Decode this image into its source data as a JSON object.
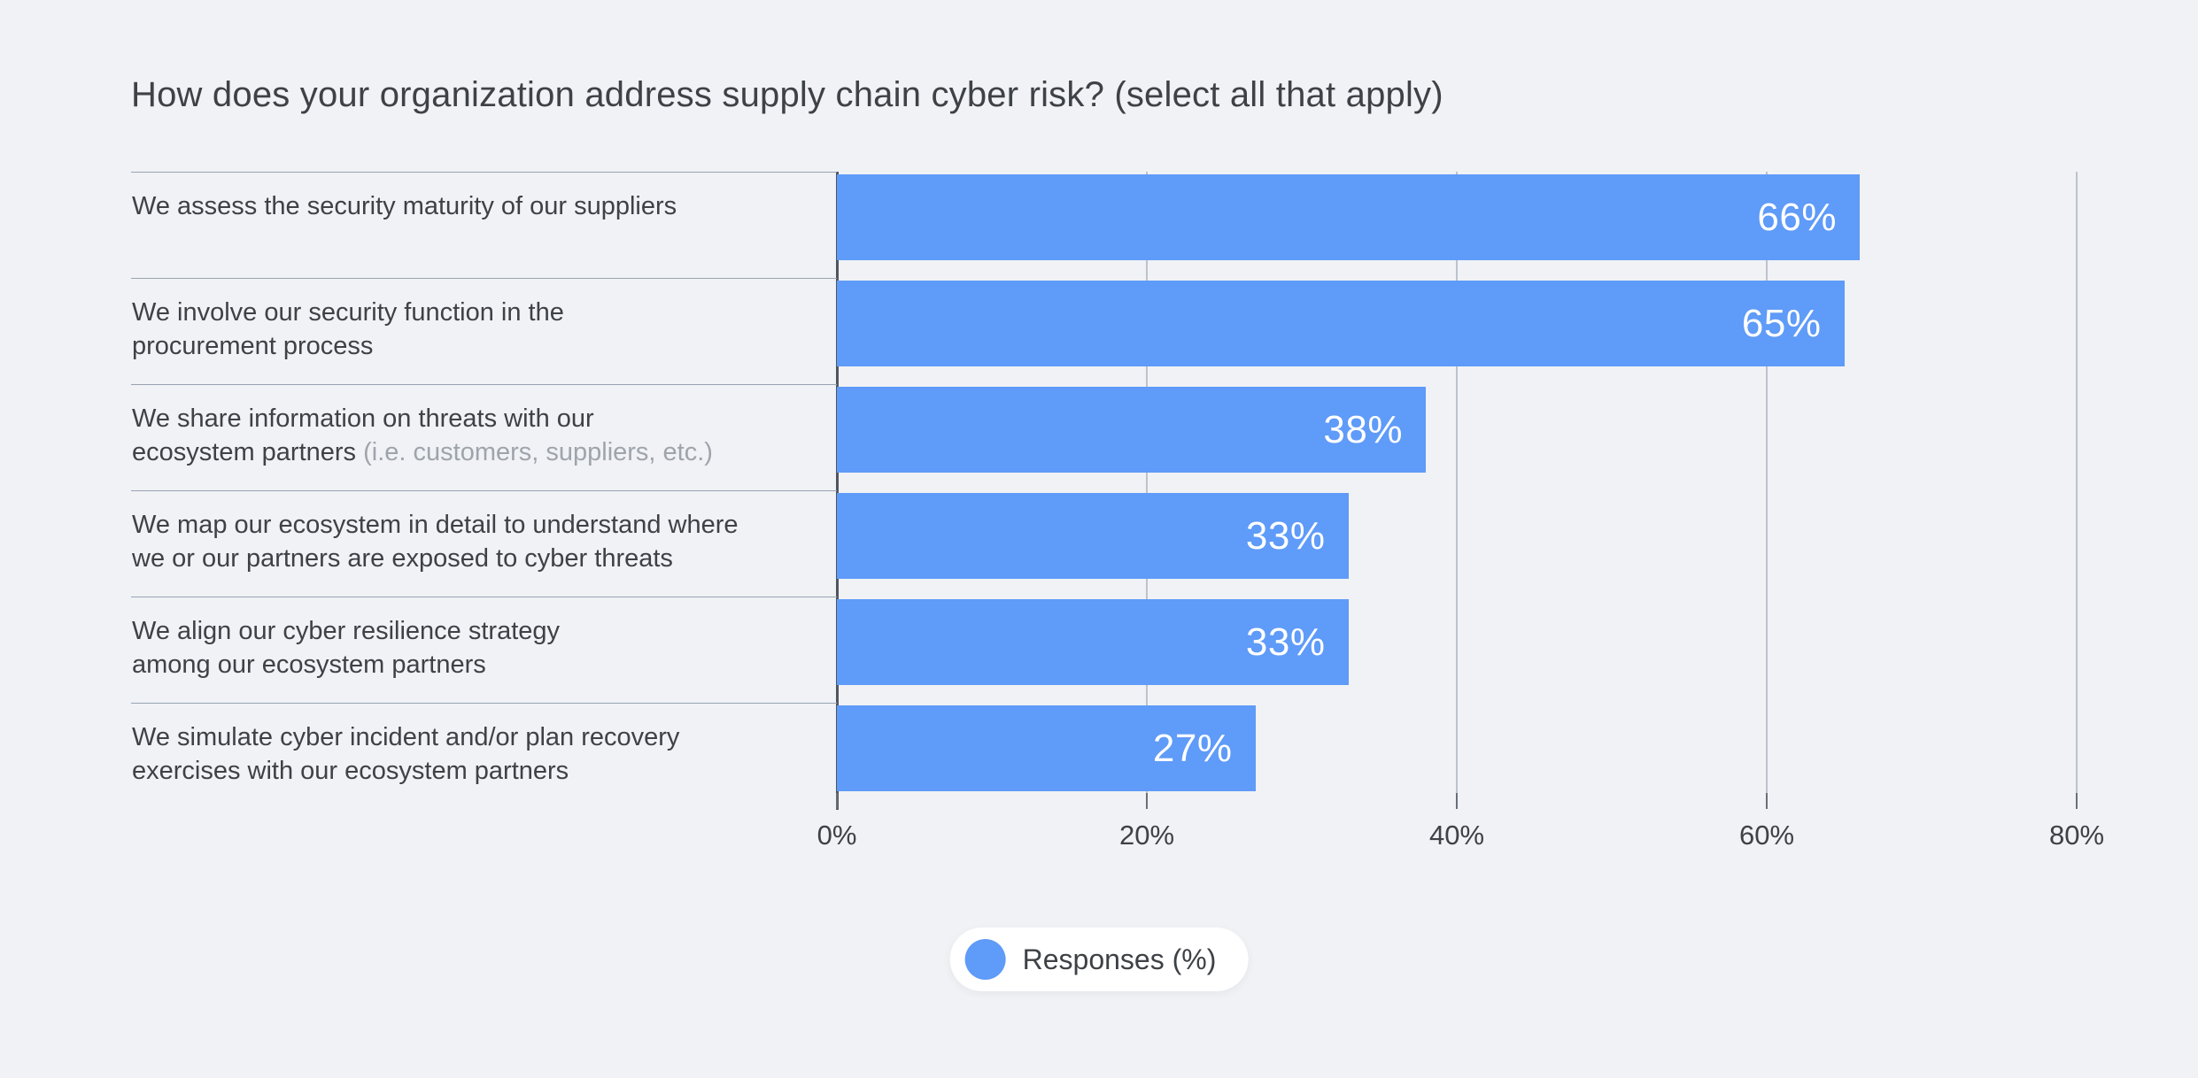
{
  "title": "How does your organization address supply chain cyber risk? (select all that apply)",
  "colors": {
    "background": "#F0F2F5",
    "bar": "#5F9BF8",
    "bar_label": "#FFFFFF",
    "text": "#3E4145",
    "muted_text": "#9FA4AC",
    "separator": "#9AA3B4",
    "gridline": "#BCC3CE",
    "axis_line": "#50565F",
    "tick": "#6A7078",
    "legend_bg": "#FFFFFF"
  },
  "chart_data": {
    "type": "bar",
    "orientation": "horizontal",
    "title": "How does your organization address supply chain cyber risk? (select all that apply)",
    "categories": [
      {
        "lines": [
          [
            {
              "text": "We assess the security maturity of our suppliers"
            }
          ]
        ]
      },
      {
        "lines": [
          [
            {
              "text": "We involve our security function in the"
            }
          ],
          [
            {
              "text": "procurement process"
            }
          ]
        ]
      },
      {
        "lines": [
          [
            {
              "text": "We share information on threats with our"
            }
          ],
          [
            {
              "text": "ecosystem partners "
            },
            {
              "text": "(i.e. customers, suppliers, etc.)",
              "muted": true
            }
          ]
        ]
      },
      {
        "lines": [
          [
            {
              "text": "We map our ecosystem in detail to understand where"
            }
          ],
          [
            {
              "text": "we or our partners are exposed to cyber threats"
            }
          ]
        ]
      },
      {
        "lines": [
          [
            {
              "text": "We align our cyber resilience strategy"
            }
          ],
          [
            {
              "text": "among our ecosystem partners"
            }
          ]
        ]
      },
      {
        "lines": [
          [
            {
              "text": "We simulate cyber incident and/or plan recovery"
            }
          ],
          [
            {
              "text": "exercises with our ecosystem partners"
            }
          ]
        ]
      }
    ],
    "series": [
      {
        "name": "Responses (%)",
        "values": [
          66,
          65,
          38,
          33,
          33,
          27
        ]
      }
    ],
    "values": [
      66,
      65,
      38,
      33,
      33,
      27
    ],
    "value_labels": [
      "66%",
      "65%",
      "38%",
      "33%",
      "33%",
      "27%"
    ],
    "value_suffix": "%",
    "xlabel": "",
    "ylabel": "",
    "xlim": [
      0,
      80
    ],
    "x_ticks": [
      {
        "value": 0,
        "label": "0%"
      },
      {
        "value": 20,
        "label": "20%"
      },
      {
        "value": 40,
        "label": "40%"
      },
      {
        "value": 60,
        "label": "60%"
      },
      {
        "value": 80,
        "label": "80%"
      }
    ],
    "grid": "vertical",
    "legend": {
      "label": "Responses (%)",
      "position": "bottom-center"
    }
  }
}
